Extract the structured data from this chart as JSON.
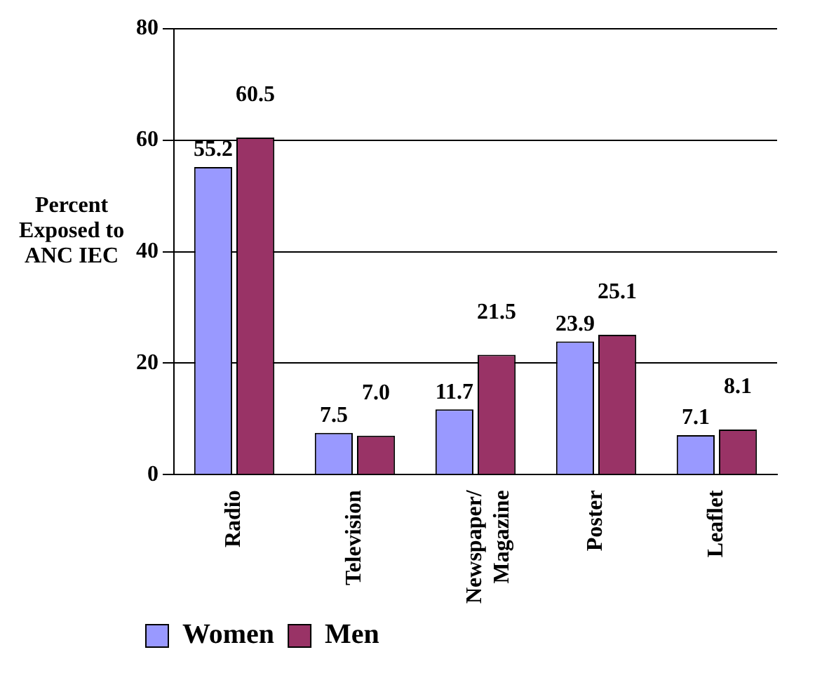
{
  "chart_data": {
    "type": "bar",
    "ylabel": "Percent Exposed to ANC IEC",
    "categories": [
      "Radio",
      "Television",
      "Newspaper/ Magazine",
      "Poster",
      "Leaflet"
    ],
    "series": [
      {
        "name": "Women",
        "color": "#9999ff",
        "values": [
          55.2,
          7.5,
          11.7,
          23.9,
          7.1
        ],
        "value_labels": [
          "55.2",
          "7.5",
          "11.7",
          "23.9",
          "7.1"
        ]
      },
      {
        "name": "Men",
        "color": "#993366",
        "values": [
          60.5,
          7.0,
          21.5,
          25.1,
          8.1
        ],
        "value_labels": [
          "60.5",
          "7.0",
          "21.5",
          "25.1",
          "8.1"
        ]
      }
    ],
    "ylim": [
      0,
      80
    ],
    "yticks": [
      0,
      20,
      40,
      60,
      80
    ],
    "grid": "y",
    "legend": "bottom left"
  }
}
